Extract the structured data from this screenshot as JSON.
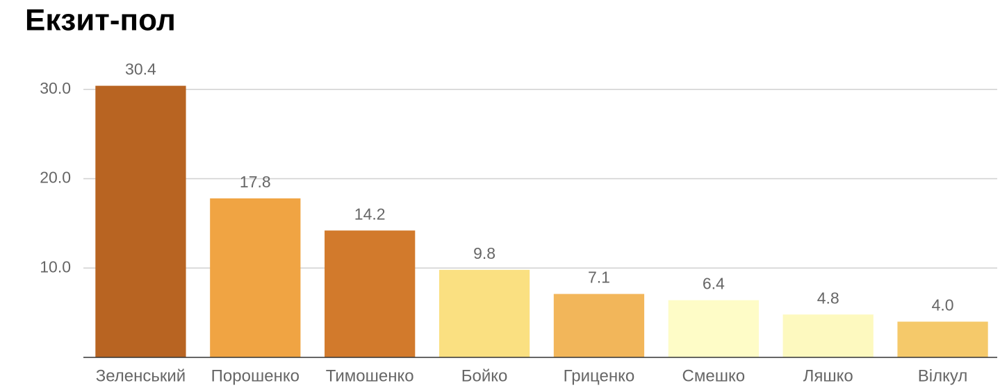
{
  "chart_data": {
    "type": "bar",
    "title": "Екзит-пол",
    "categories": [
      "Зеленський",
      "Порошенко",
      "Тимошенко",
      "Бойко",
      "Гриценко",
      "Смешко",
      "Ляшко",
      "Вілкул"
    ],
    "values": [
      30.4,
      17.8,
      14.2,
      9.8,
      7.1,
      6.4,
      4.8,
      4.0
    ],
    "value_labels": [
      "30.4",
      "17.8",
      "14.2",
      "9.8",
      "7.1",
      "6.4",
      "4.8",
      "4.0"
    ],
    "colors": [
      "#b86422",
      "#f0a443",
      "#d27a2c",
      "#fae081",
      "#f2b65a",
      "#fefcc7",
      "#fdf9bf",
      "#f5c96a"
    ],
    "ylim": [
      0,
      32
    ],
    "yticks": [
      {
        "value": 10,
        "label": "10.0"
      },
      {
        "value": 20,
        "label": "20.0"
      },
      {
        "value": 30,
        "label": "30.0"
      }
    ],
    "grid": true
  }
}
